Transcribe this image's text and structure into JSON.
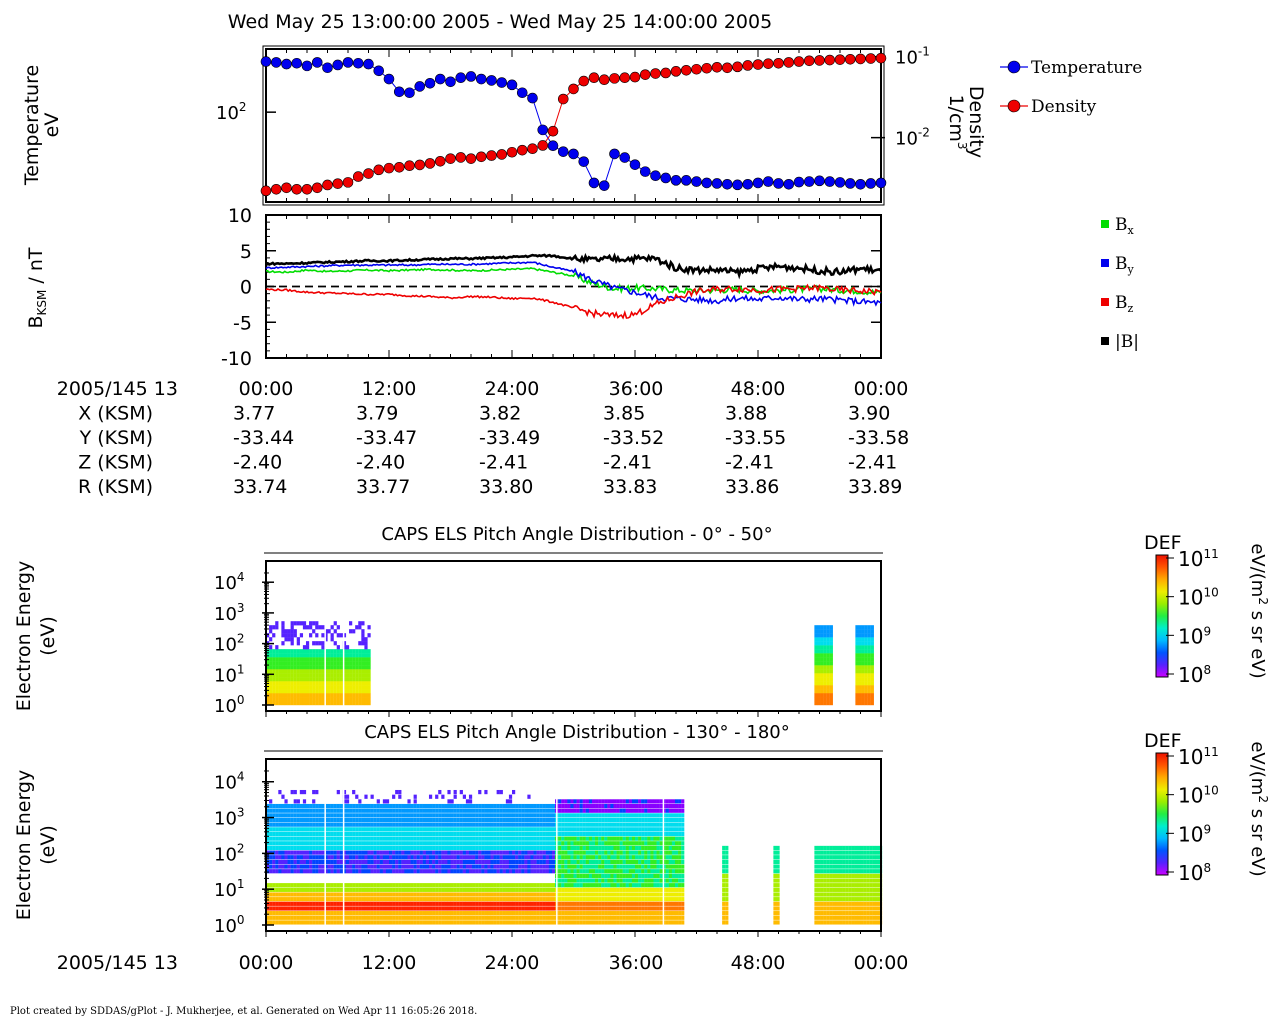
{
  "title": "Wed May 25 13:00:00 2005 - Wed May 25 14:00:00 2005",
  "footer": "Plot created by SDDAS/gPlot - J. Mukherjee, et al.  Generated on Wed Apr 11 16:05:26 2018.",
  "chart_data": [
    {
      "type": "line",
      "panel": "plasma",
      "ylabel_left": [
        "Temperature",
        "eV"
      ],
      "ylabel_right": [
        "Density",
        "1/cm3"
      ],
      "left_ticks": [
        "10^2"
      ],
      "right_ticks": [
        "10^-1",
        "10^-2"
      ],
      "x_minutes": [
        0,
        1,
        2,
        3,
        4,
        5,
        6,
        7,
        8,
        9,
        10,
        11,
        12,
        13,
        14,
        15,
        16,
        17,
        18,
        19,
        20,
        21,
        22,
        23,
        24,
        25,
        26,
        27,
        28,
        29,
        30,
        31,
        32,
        33,
        34,
        35,
        36,
        37,
        38,
        39,
        40,
        41,
        42,
        43,
        44,
        45,
        46,
        47,
        48,
        49,
        50,
        51,
        52,
        53,
        54,
        55,
        56,
        57,
        58,
        59,
        60
      ],
      "series": [
        {
          "name": "Temperature",
          "color": "#0000ee",
          "axis": "left",
          "values": [
            430,
            420,
            400,
            410,
            380,
            420,
            360,
            390,
            420,
            410,
            400,
            330,
            260,
            180,
            175,
            210,
            230,
            260,
            240,
            270,
            280,
            260,
            250,
            235,
            220,
            175,
            150,
            60,
            38,
            32,
            30,
            24,
            13,
            12,
            30,
            27,
            22,
            18,
            16,
            15,
            14,
            14,
            13.5,
            13,
            12.8,
            12.5,
            12.3,
            12.5,
            13,
            13.5,
            12.8,
            12.5,
            13.3,
            13.5,
            13.8,
            13.5,
            13.2,
            12.8,
            12.5,
            12.8,
            13
          ]
        },
        {
          "name": "Density",
          "color": "#ee0000",
          "axis": "right",
          "values": [
            0.0022,
            0.0023,
            0.0024,
            0.0023,
            0.0023,
            0.0024,
            0.0026,
            0.0027,
            0.0028,
            0.0033,
            0.0036,
            0.004,
            0.0042,
            0.0043,
            0.0045,
            0.0046,
            0.0048,
            0.0051,
            0.0055,
            0.0057,
            0.0055,
            0.0058,
            0.006,
            0.0062,
            0.0066,
            0.007,
            0.0073,
            0.008,
            0.012,
            0.03,
            0.04,
            0.05,
            0.055,
            0.052,
            0.054,
            0.055,
            0.056,
            0.06,
            0.062,
            0.063,
            0.066,
            0.068,
            0.07,
            0.072,
            0.074,
            0.073,
            0.075,
            0.078,
            0.08,
            0.082,
            0.083,
            0.085,
            0.087,
            0.089,
            0.09,
            0.091,
            0.092,
            0.093,
            0.094,
            0.095,
            0.096
          ]
        }
      ],
      "legend": [
        "Temperature",
        "Density"
      ],
      "legend_position": "right"
    },
    {
      "type": "line",
      "panel": "magnetic",
      "ylabel": "B_KSM / nT",
      "ylim": [
        -10,
        10
      ],
      "y_ticks": [
        "10",
        "5",
        "0",
        "-5",
        "-10"
      ],
      "x_minutes": [
        0,
        2,
        4,
        6,
        8,
        10,
        12,
        14,
        16,
        18,
        20,
        22,
        24,
        26,
        28,
        30,
        32,
        34,
        36,
        38,
        40,
        42,
        44,
        46,
        48,
        50,
        52,
        54,
        56,
        58,
        60
      ],
      "series": [
        {
          "name": "Bx",
          "color": "#00dd00",
          "values": [
            2.1,
            2.0,
            2.3,
            2.1,
            2.2,
            2.3,
            2.2,
            2.3,
            2.4,
            2.3,
            2.2,
            2.3,
            2.4,
            2.5,
            2.0,
            1.5,
            0.4,
            -0.3,
            -0.2,
            -0.3,
            -0.5,
            -0.6,
            -0.5,
            -0.4,
            -0.6,
            -0.5,
            -0.4,
            -0.3,
            -0.5,
            -0.6,
            -0.9
          ]
        },
        {
          "name": "By",
          "color": "#0000ee",
          "values": [
            2.6,
            2.7,
            2.8,
            2.9,
            3.0,
            3.0,
            3.0,
            3.0,
            3.1,
            3.1,
            3.1,
            3.2,
            3.3,
            3.4,
            2.7,
            2.1,
            0.8,
            -0.2,
            -0.8,
            -1.5,
            -1.7,
            -1.8,
            -2.0,
            -1.6,
            -1.8,
            -1.5,
            -1.8,
            -1.7,
            -1.9,
            -2.1,
            -2.3
          ]
        },
        {
          "name": "Bz",
          "color": "#ee0000",
          "values": [
            -0.4,
            -0.5,
            -0.8,
            -0.9,
            -1.0,
            -1.1,
            -1.1,
            -1.3,
            -1.4,
            -1.6,
            -1.4,
            -1.5,
            -1.7,
            -1.6,
            -2.2,
            -3.0,
            -3.8,
            -4.1,
            -3.9,
            -2.5,
            -1.5,
            -0.7,
            -0.4,
            -0.3,
            -0.5,
            -0.4,
            -0.3,
            -0.2,
            -0.5,
            -0.6,
            -0.8
          ]
        },
        {
          "name": "|B|",
          "color": "#000000",
          "values": [
            3.2,
            3.2,
            3.3,
            3.4,
            3.5,
            3.6,
            3.6,
            3.7,
            3.8,
            3.9,
            3.9,
            4.0,
            4.1,
            4.3,
            4.3,
            3.9,
            3.7,
            3.9,
            3.9,
            3.9,
            2.6,
            2.3,
            2.3,
            2.0,
            2.5,
            2.8,
            2.6,
            2.2,
            2.0,
            2.5,
            2.2
          ]
        }
      ],
      "legend": [
        "Bx",
        "By",
        "Bz",
        "|B|"
      ],
      "legend_position": "right",
      "zero_line": "dashed"
    },
    {
      "type": "table",
      "panel": "ephemeris",
      "row_labels": [
        "2005/145 13",
        "X (KSM)",
        "Y (KSM)",
        "Z (KSM)",
        "R (KSM)"
      ],
      "columns": [
        [
          "00:00",
          "3.77",
          "-33.44",
          "-2.40",
          "33.74"
        ],
        [
          "12:00",
          "3.79",
          "-33.47",
          "-2.40",
          "33.77"
        ],
        [
          "24:00",
          "3.82",
          "-33.49",
          "-2.41",
          "33.80"
        ],
        [
          "36:00",
          "3.85",
          "-33.52",
          "-2.41",
          "33.83"
        ],
        [
          "48:00",
          "3.88",
          "-33.55",
          "-2.41",
          "33.86"
        ],
        [
          "00:00",
          "3.90",
          "-33.58",
          "-2.41",
          "33.89"
        ]
      ]
    },
    {
      "type": "heatmap",
      "panel": "els1",
      "title": "CAPS ELS Pitch Angle Distribution - 0° - 50°",
      "ylabel": [
        "Electron Energy",
        "(eV)"
      ],
      "y_ticks": [
        "10^4",
        "10^3",
        "10^2",
        "10^1",
        "10^0"
      ],
      "colorbar": {
        "label": "DEF",
        "units": "eV/(m2 s sr eV)",
        "ticks": [
          "10^11",
          "10^10",
          "10^9",
          "10^8"
        ]
      },
      "data_intervals_minutes": [
        [
          0,
          10.2
        ],
        [
          53.5,
          55
        ],
        [
          57.5,
          59
        ]
      ],
      "note": ""
    },
    {
      "type": "heatmap",
      "panel": "els2",
      "title": "CAPS ELS Pitch Angle Distribution - 130° - 180°",
      "ylabel": [
        "Electron Energy",
        "(eV)"
      ],
      "y_ticks": [
        "10^4",
        "10^3",
        "10^2",
        "10^1",
        "10^0"
      ],
      "colorbar": {
        "label": "DEF",
        "units": "eV/(m2 s sr eV)",
        "ticks": [
          "10^11",
          "10^10",
          "10^9",
          "10^8"
        ]
      },
      "data_intervals_minutes": [
        [
          0,
          40.5
        ],
        [
          44.5,
          45
        ],
        [
          49.5,
          50
        ],
        [
          53.5,
          60
        ]
      ],
      "x_tick_labels": [
        "00:00",
        "12:00",
        "24:00",
        "36:00",
        "48:00",
        "00:00"
      ],
      "x_row_label": "2005/145 13"
    }
  ]
}
